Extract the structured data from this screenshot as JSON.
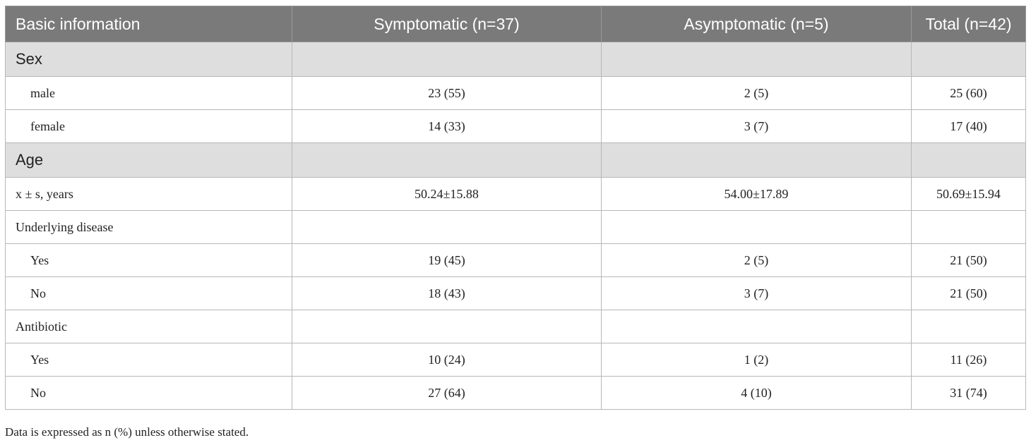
{
  "table": {
    "headers": [
      "Basic information",
      "Symptomatic (n=37)",
      "Asymptomatic (n=5)",
      "Total (n=42)"
    ],
    "sections": {
      "sex": {
        "title": "Sex",
        "rows": [
          {
            "label": "male",
            "values": [
              "23 (55)",
              "2 (5)",
              "25 (60)"
            ]
          },
          {
            "label": "female",
            "values": [
              "14 (33)",
              "3 (7)",
              "17 (40)"
            ]
          }
        ]
      },
      "age": {
        "title": "Age",
        "rows": [
          {
            "label": "x ± s, years",
            "values": [
              "50.24±15.88",
              "54.00±17.89",
              "50.69±15.94"
            ]
          }
        ]
      },
      "underlying": {
        "title": "Underlying disease",
        "rows": [
          {
            "label": "Yes",
            "values": [
              "19 (45)",
              "2 (5)",
              "21 (50)"
            ]
          },
          {
            "label": "No",
            "values": [
              "18 (43)",
              "3 (7)",
              "21 (50)"
            ]
          }
        ]
      },
      "antibiotic": {
        "title": "Antibiotic",
        "rows": [
          {
            "label": "Yes",
            "values": [
              "10 (24)",
              "1 (2)",
              "11 (26)"
            ]
          },
          {
            "label": "No",
            "values": [
              "27 (64)",
              "4 (10)",
              "31 (74)"
            ]
          }
        ]
      }
    }
  },
  "footnote": "Data is expressed as n (%) unless otherwise stated."
}
